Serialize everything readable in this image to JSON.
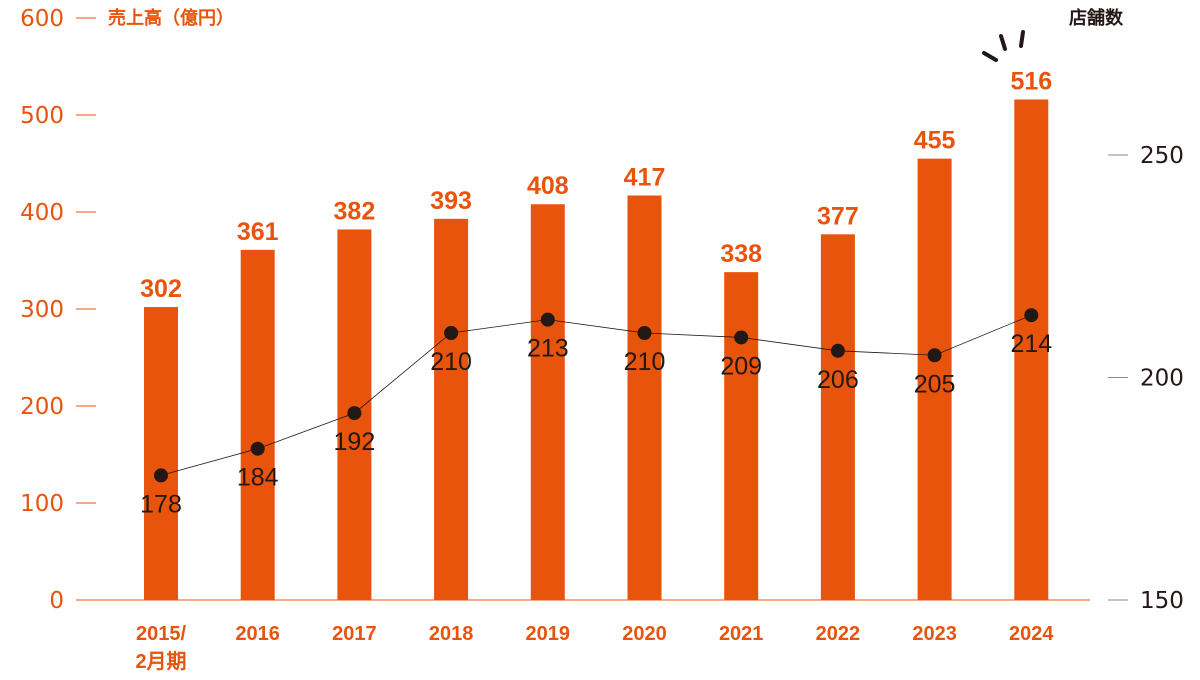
{
  "chart_data": {
    "type": "bar",
    "categories": [
      "2015/\n2月期",
      "2016",
      "2017",
      "2018",
      "2019",
      "2020",
      "2021",
      "2022",
      "2023",
      "2024"
    ],
    "series": [
      {
        "name": "売上高（億円）",
        "type": "bar",
        "axis": "left",
        "values": [
          302,
          361,
          382,
          393,
          408,
          417,
          338,
          377,
          455,
          516
        ]
      },
      {
        "name": "店舗数",
        "type": "line",
        "axis": "right",
        "values": [
          178,
          184,
          192,
          210,
          213,
          210,
          209,
          206,
          205,
          214
        ]
      }
    ],
    "left_axis": {
      "title": "売上高（億円）",
      "ticks": [
        0,
        100,
        200,
        300,
        400,
        500,
        600
      ],
      "range": [
        0,
        600
      ]
    },
    "right_axis": {
      "title": "店舗数",
      "ticks": [
        150,
        200,
        250
      ],
      "range": [
        150,
        250
      ]
    },
    "colors": {
      "bar": "#e8540c",
      "line": "#231815",
      "point": "#231815",
      "left_axis": "#e8540c",
      "right_axis": "#231815"
    },
    "grid": false,
    "annotations": [
      "emphasis strokes above 2024 bar"
    ]
  }
}
